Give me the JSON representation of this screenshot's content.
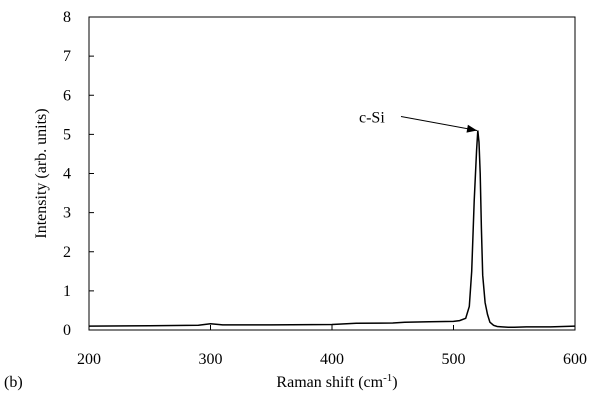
{
  "chart_data": {
    "type": "line",
    "panel_label": "(b)",
    "xlabel_main": "Raman shift (cm",
    "xlabel_sup": "-1",
    "xlabel_close": ")",
    "ylabel": "Intensity (arb. units)",
    "xlim": [
      200,
      600
    ],
    "ylim": [
      0,
      8
    ],
    "x_ticks": [
      "200",
      "300",
      "400",
      "500",
      "600"
    ],
    "y_ticks": [
      "0",
      "1",
      "2",
      "3",
      "4",
      "5",
      "6",
      "7",
      "8"
    ],
    "grid": false,
    "annotation": {
      "text": "c-Si",
      "x": 521,
      "y": 5.1
    },
    "series": [
      {
        "x": [
          200,
          250,
          290,
          300,
          310,
          350,
          400,
          420,
          450,
          460,
          480,
          500,
          505,
          510,
          513,
          515,
          517,
          519,
          520,
          521,
          522,
          523,
          524,
          526,
          528,
          530,
          533,
          536,
          540,
          545,
          550,
          560,
          580,
          600
        ],
        "y": [
          0.1,
          0.11,
          0.12,
          0.16,
          0.13,
          0.13,
          0.14,
          0.17,
          0.18,
          0.2,
          0.21,
          0.22,
          0.24,
          0.3,
          0.6,
          1.5,
          3.3,
          4.6,
          5.1,
          4.8,
          4.0,
          2.6,
          1.4,
          0.7,
          0.4,
          0.2,
          0.12,
          0.09,
          0.08,
          0.07,
          0.07,
          0.08,
          0.08,
          0.1
        ]
      }
    ]
  }
}
